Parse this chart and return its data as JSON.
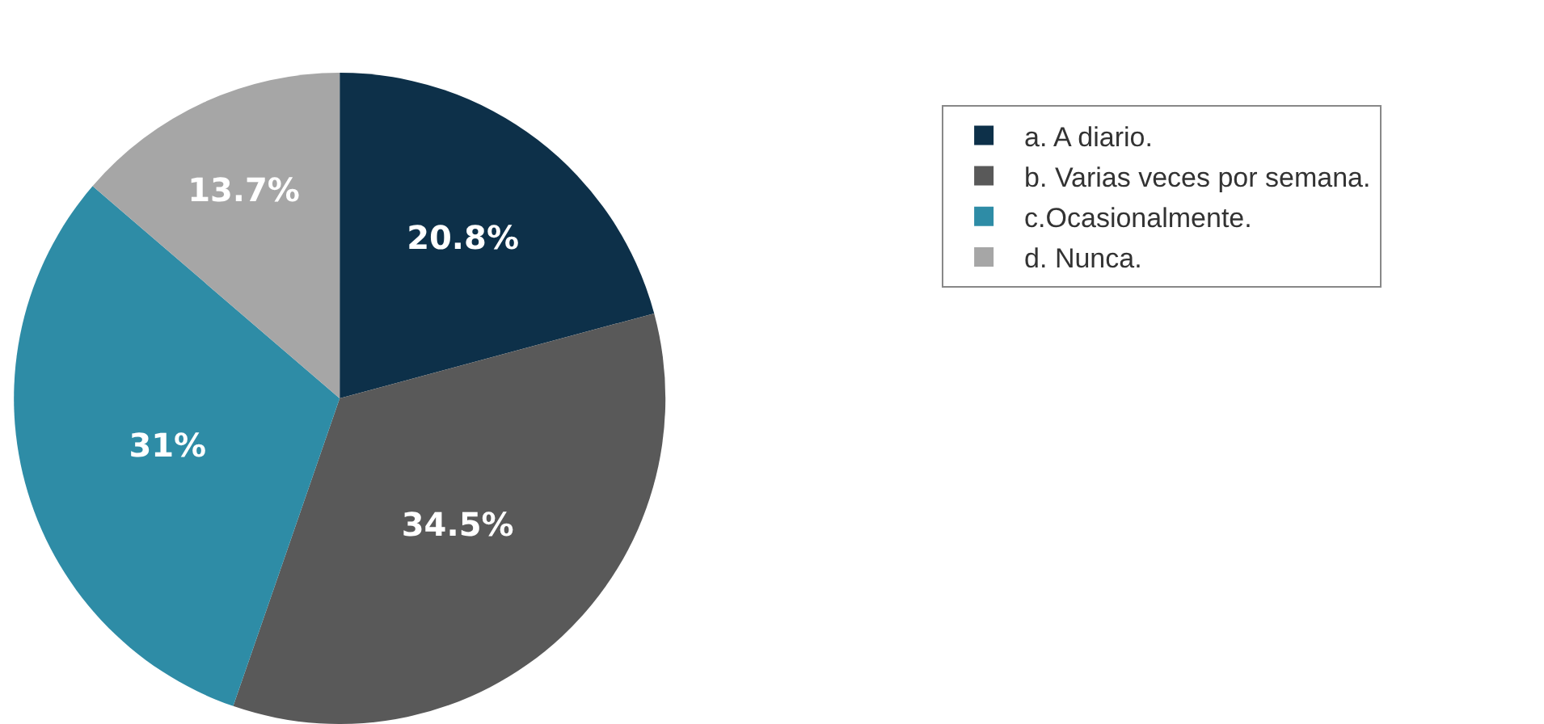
{
  "chart_data": {
    "type": "pie",
    "categories": [
      "a. A diario.",
      "b. Varias veces por semana.",
      "c.Ocasionalmente.",
      "d. Nunca."
    ],
    "values": [
      20.8,
      34.5,
      31,
      13.7
    ],
    "value_labels": [
      "20.8%",
      "34.5%",
      "31%",
      "13.7%"
    ],
    "colors": [
      "#0d3049",
      "#595959",
      "#2e8ca6",
      "#a6a6a6"
    ],
    "legend": "right"
  }
}
